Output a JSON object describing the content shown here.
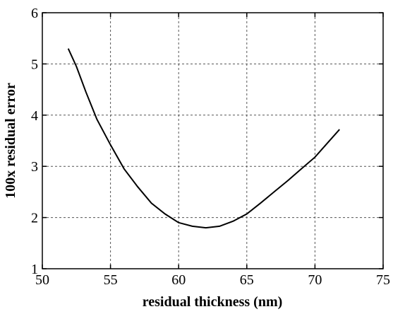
{
  "chart_data": {
    "type": "line",
    "title": "",
    "xlabel": "residual thickness (nm)",
    "ylabel": "100x residual error",
    "xlim": [
      50,
      75
    ],
    "ylim": [
      1,
      6
    ],
    "x_ticks": [
      50,
      55,
      60,
      65,
      70,
      75
    ],
    "y_ticks": [
      1,
      2,
      3,
      4,
      5,
      6
    ],
    "grid": true,
    "series": [
      {
        "x": [
          51.9,
          52.5,
          53.2,
          54.0,
          55.0,
          56.0,
          57.0,
          58.0,
          59.0,
          60.0,
          61.0,
          62.0,
          63.0,
          64.0,
          65.0,
          66.0,
          67.0,
          68.0,
          69.0,
          70.0,
          71.0,
          71.8
        ],
        "y": [
          5.3,
          4.95,
          4.45,
          3.92,
          3.42,
          2.95,
          2.6,
          2.28,
          2.07,
          1.9,
          1.83,
          1.8,
          1.83,
          1.93,
          2.07,
          2.28,
          2.5,
          2.72,
          2.95,
          3.18,
          3.48,
          3.72
        ]
      }
    ]
  }
}
